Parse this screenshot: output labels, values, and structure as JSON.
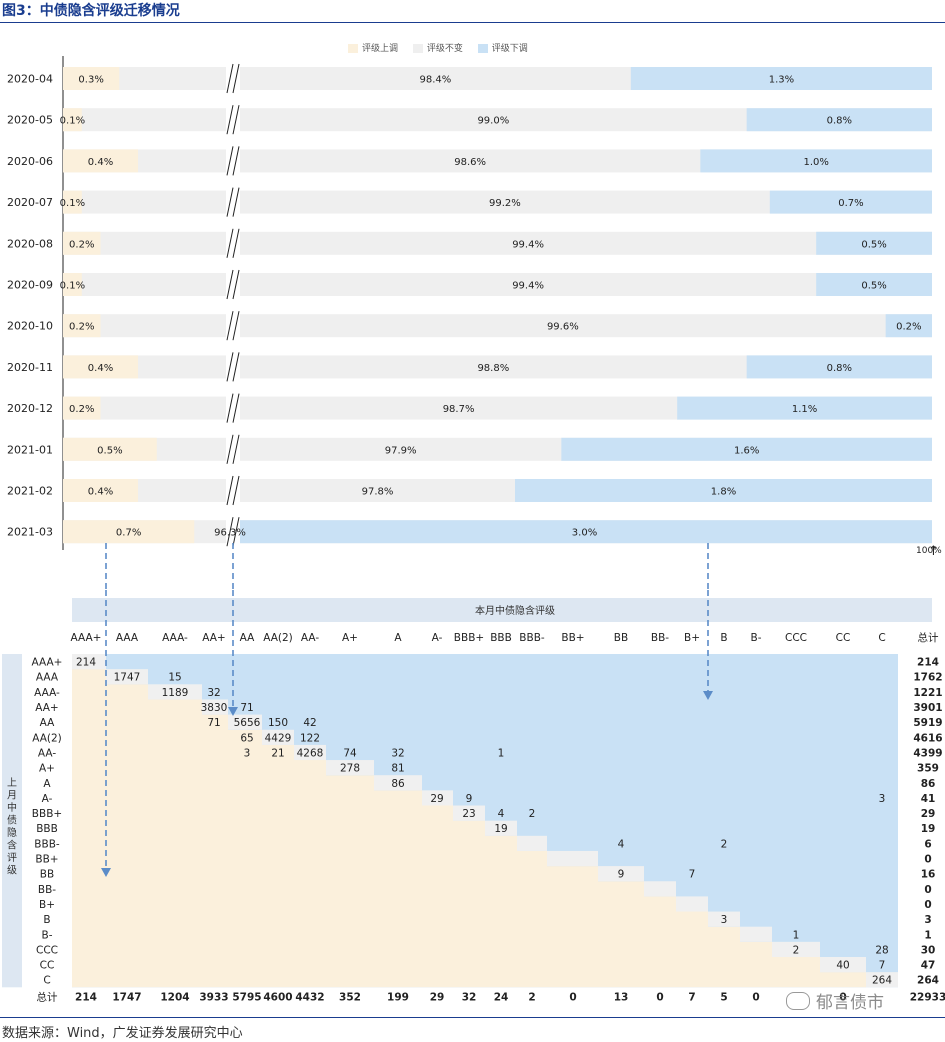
{
  "title": "图3：中债隐含评级迁移情况",
  "source": "数据来源：Wind，广发证券发展研究中心",
  "watermark": "郁言债市",
  "legend": {
    "up": "评级上调",
    "same": "评级不变",
    "down": "评级下调"
  },
  "axis_end_label": "100%",
  "colors": {
    "up": "#fbf0dc",
    "same": "#efefef",
    "down": "#c9e1f5",
    "header": "#dde7f2",
    "diag": "#f0f0f0",
    "arrow": "#5b8cc8"
  },
  "chart_data": [
    {
      "type": "bar",
      "stacked": true,
      "orientation": "horizontal",
      "categories": [
        "2020-04",
        "2020-05",
        "2020-06",
        "2020-07",
        "2020-08",
        "2020-09",
        "2020-10",
        "2020-11",
        "2020-12",
        "2021-01",
        "2021-02",
        "2021-03"
      ],
      "series": [
        {
          "name": "评级上调",
          "values": [
            0.3,
            0.1,
            0.4,
            0.1,
            0.2,
            0.1,
            0.2,
            0.4,
            0.2,
            0.5,
            0.4,
            0.7
          ],
          "labels": [
            "0.3%",
            "0.1%",
            "0.4%",
            "0.1%",
            "0.2%",
            "0.1%",
            "0.2%",
            "0.4%",
            "0.2%",
            "0.5%",
            "0.4%",
            "0.7%"
          ]
        },
        {
          "name": "评级不变",
          "values": [
            98.4,
            99.0,
            98.6,
            99.2,
            99.4,
            99.4,
            99.6,
            98.8,
            98.7,
            97.9,
            97.8,
            96.3
          ],
          "labels": [
            "98.4%",
            "99.0%",
            "98.6%",
            "99.2%",
            "99.4%",
            "99.4%",
            "99.6%",
            "98.8%",
            "98.7%",
            "97.9%",
            "97.8%",
            "96.3%"
          ]
        },
        {
          "name": "评级下调",
          "values": [
            1.3,
            0.8,
            1.0,
            0.7,
            0.5,
            0.5,
            0.2,
            0.8,
            1.1,
            1.6,
            1.8,
            3.0
          ],
          "labels": [
            "1.3%",
            "0.8%",
            "1.0%",
            "0.7%",
            "0.5%",
            "0.5%",
            "0.2%",
            "0.8%",
            "1.1%",
            "1.6%",
            "1.8%",
            "3.0%"
          ]
        }
      ],
      "axis_break": true,
      "xlim_pct": [
        0,
        100
      ]
    },
    {
      "type": "table",
      "col_header": "本月中债隐含评级",
      "row_header": "上月中债隐含评级",
      "total_label": "总计",
      "ratings": [
        "AAA+",
        "AAA",
        "AAA-",
        "AA+",
        "AA",
        "AA(2)",
        "AA-",
        "A+",
        "A",
        "A-",
        "BBB+",
        "BBB",
        "BBB-",
        "BB+",
        "BB",
        "BB-",
        "B+",
        "B",
        "B-",
        "CCC",
        "CC",
        "C"
      ],
      "cells": [
        [
          0,
          0,
          214
        ],
        [
          1,
          1,
          1747
        ],
        [
          1,
          2,
          15
        ],
        [
          2,
          2,
          1189
        ],
        [
          2,
          3,
          32
        ],
        [
          3,
          3,
          3830
        ],
        [
          3,
          4,
          71
        ],
        [
          4,
          3,
          71
        ],
        [
          4,
          4,
          5656
        ],
        [
          4,
          5,
          150
        ],
        [
          4,
          6,
          42
        ],
        [
          5,
          4,
          65
        ],
        [
          5,
          5,
          4429
        ],
        [
          5,
          6,
          122
        ],
        [
          6,
          4,
          3
        ],
        [
          6,
          5,
          21
        ],
        [
          6,
          6,
          4268
        ],
        [
          6,
          7,
          74
        ],
        [
          6,
          8,
          32
        ],
        [
          6,
          11,
          1
        ],
        [
          7,
          7,
          278
        ],
        [
          7,
          8,
          81
        ],
        [
          8,
          8,
          86
        ],
        [
          9,
          9,
          29
        ],
        [
          9,
          10,
          9
        ],
        [
          9,
          21,
          3
        ],
        [
          10,
          10,
          23
        ],
        [
          10,
          11,
          4
        ],
        [
          10,
          12,
          2
        ],
        [
          11,
          11,
          19
        ],
        [
          12,
          14,
          4
        ],
        [
          12,
          17,
          2
        ],
        [
          14,
          14,
          9
        ],
        [
          14,
          16,
          7
        ],
        [
          17,
          17,
          3
        ],
        [
          18,
          19,
          1
        ],
        [
          19,
          19,
          2
        ],
        [
          19,
          21,
          28
        ],
        [
          20,
          20,
          40
        ],
        [
          20,
          21,
          7
        ],
        [
          21,
          21,
          264
        ]
      ],
      "row_totals": [
        214,
        1762,
        1221,
        3901,
        5919,
        4616,
        4399,
        359,
        86,
        41,
        29,
        19,
        6,
        0,
        16,
        0,
        0,
        3,
        1,
        30,
        47,
        264
      ],
      "col_totals": [
        214,
        1747,
        1204,
        3933,
        5795,
        4600,
        4432,
        352,
        199,
        29,
        32,
        24,
        2,
        0,
        13,
        0,
        7,
        5,
        0,
        "",
        0,
        ""
      ],
      "grand_total": 22933
    }
  ]
}
